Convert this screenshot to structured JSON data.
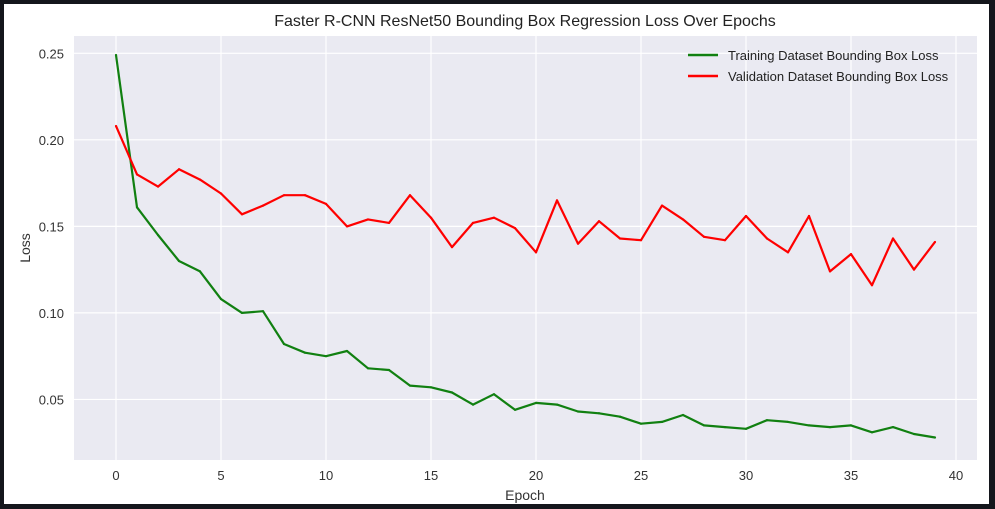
{
  "chart_data": {
    "type": "line",
    "title": "Faster R-CNN ResNet50 Bounding Box Regression Loss Over Epochs",
    "xlabel": "Epoch",
    "ylabel": "Loss",
    "xlim": [
      -2,
      41
    ],
    "ylim": [
      0.015,
      0.26
    ],
    "xticks": [
      0,
      5,
      10,
      15,
      20,
      25,
      30,
      35,
      40
    ],
    "yticks": [
      0.05,
      0.1,
      0.15,
      0.2,
      0.25
    ],
    "ytick_labels": [
      "0.05",
      "0.10",
      "0.15",
      "0.20",
      "0.25"
    ],
    "grid": true,
    "legend_position": "top-right",
    "x": [
      0,
      1,
      2,
      3,
      4,
      5,
      6,
      7,
      8,
      9,
      10,
      11,
      12,
      13,
      14,
      15,
      16,
      17,
      18,
      19,
      20,
      21,
      22,
      23,
      24,
      25,
      26,
      27,
      28,
      29,
      30,
      31,
      32,
      33,
      34,
      35,
      36,
      37,
      38,
      39
    ],
    "series": [
      {
        "name": "Training Dataset Bounding Box Loss",
        "color": "#118011",
        "values": [
          0.249,
          0.161,
          0.145,
          0.13,
          0.124,
          0.108,
          0.1,
          0.101,
          0.082,
          0.077,
          0.075,
          0.078,
          0.068,
          0.067,
          0.058,
          0.057,
          0.054,
          0.047,
          0.053,
          0.044,
          0.048,
          0.047,
          0.043,
          0.042,
          0.04,
          0.036,
          0.037,
          0.041,
          0.035,
          0.034,
          0.033,
          0.038,
          0.037,
          0.035,
          0.034,
          0.035,
          0.031,
          0.034,
          0.03,
          0.028
        ]
      },
      {
        "name": "Validation Dataset Bounding Box Loss",
        "color": "#ff0000",
        "values": [
          0.208,
          0.18,
          0.173,
          0.183,
          0.177,
          0.169,
          0.157,
          0.162,
          0.168,
          0.168,
          0.163,
          0.15,
          0.154,
          0.152,
          0.168,
          0.155,
          0.138,
          0.152,
          0.155,
          0.149,
          0.135,
          0.165,
          0.14,
          0.153,
          0.143,
          0.142,
          0.162,
          0.154,
          0.144,
          0.142,
          0.156,
          0.143,
          0.135,
          0.156,
          0.124,
          0.134,
          0.116,
          0.143,
          0.125,
          0.141
        ]
      }
    ]
  }
}
